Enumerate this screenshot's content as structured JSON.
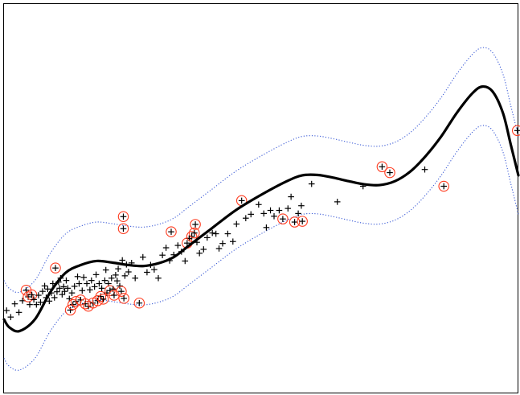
{
  "chart_data": {
    "type": "scatter",
    "title": "",
    "xlabel": "",
    "ylabel": "",
    "xlim": [
      0,
      1
    ],
    "ylim": [
      0,
      1
    ],
    "grid": false,
    "legend": "none",
    "colors": {
      "points": "#000000",
      "support_vectors": "#ff3b1f",
      "fit": "#000000",
      "band": "#3b5bd6",
      "frame": "#000000"
    },
    "fit_curve": {
      "x": [
        0.0,
        0.01,
        0.03,
        0.06,
        0.09,
        0.12,
        0.15,
        0.18,
        0.21,
        0.24,
        0.27,
        0.3,
        0.33,
        0.36,
        0.4,
        0.45,
        0.5,
        0.55,
        0.58,
        0.61,
        0.64,
        0.67,
        0.7,
        0.73,
        0.76,
        0.79,
        0.82,
        0.85,
        0.88,
        0.91,
        0.93,
        0.95,
        0.97,
        0.985,
        1.0
      ],
      "y": [
        0.19,
        0.17,
        0.16,
        0.19,
        0.26,
        0.31,
        0.33,
        0.34,
        0.336,
        0.33,
        0.327,
        0.334,
        0.35,
        0.38,
        0.42,
        0.47,
        0.51,
        0.545,
        0.56,
        0.561,
        0.554,
        0.545,
        0.537,
        0.535,
        0.545,
        0.57,
        0.61,
        0.66,
        0.72,
        0.77,
        0.788,
        0.775,
        0.72,
        0.64,
        0.56
      ]
    },
    "band_upper": {
      "x": [
        0.0,
        0.01,
        0.03,
        0.06,
        0.09,
        0.12,
        0.15,
        0.18,
        0.21,
        0.24,
        0.27,
        0.3,
        0.33,
        0.36,
        0.4,
        0.45,
        0.5,
        0.55,
        0.58,
        0.61,
        0.64,
        0.67,
        0.7,
        0.73,
        0.76,
        0.79,
        0.82,
        0.85,
        0.88,
        0.91,
        0.93,
        0.95,
        0.97,
        0.985,
        1.0
      ],
      "y": [
        0.29,
        0.27,
        0.26,
        0.29,
        0.36,
        0.41,
        0.43,
        0.44,
        0.436,
        0.43,
        0.427,
        0.434,
        0.45,
        0.48,
        0.52,
        0.57,
        0.61,
        0.645,
        0.66,
        0.661,
        0.654,
        0.645,
        0.637,
        0.635,
        0.645,
        0.67,
        0.71,
        0.76,
        0.82,
        0.87,
        0.888,
        0.875,
        0.82,
        0.74,
        0.66
      ]
    },
    "band_lower": {
      "x": [
        0.0,
        0.01,
        0.03,
        0.06,
        0.09,
        0.12,
        0.15,
        0.18,
        0.21,
        0.24,
        0.27,
        0.3,
        0.33,
        0.36,
        0.4,
        0.45,
        0.5,
        0.55,
        0.58,
        0.61,
        0.64,
        0.67,
        0.7,
        0.73,
        0.76,
        0.79,
        0.82,
        0.85,
        0.88,
        0.91,
        0.93,
        0.95,
        0.97,
        0.985,
        1.0
      ],
      "y": [
        0.09,
        0.07,
        0.06,
        0.09,
        0.16,
        0.21,
        0.23,
        0.24,
        0.236,
        0.23,
        0.227,
        0.234,
        0.25,
        0.28,
        0.32,
        0.37,
        0.41,
        0.445,
        0.46,
        0.461,
        0.454,
        0.445,
        0.437,
        0.435,
        0.445,
        0.47,
        0.51,
        0.56,
        0.62,
        0.67,
        0.688,
        0.675,
        0.62,
        0.54,
        0.46
      ]
    },
    "points": [
      {
        "x": 0.005,
        "y": 0.213,
        "sv": false
      },
      {
        "x": 0.013,
        "y": 0.196,
        "sv": false
      },
      {
        "x": 0.021,
        "y": 0.23,
        "sv": false
      },
      {
        "x": 0.029,
        "y": 0.208,
        "sv": false
      },
      {
        "x": 0.036,
        "y": 0.238,
        "sv": false
      },
      {
        "x": 0.043,
        "y": 0.265,
        "sv": true
      },
      {
        "x": 0.047,
        "y": 0.248,
        "sv": true
      },
      {
        "x": 0.05,
        "y": 0.228,
        "sv": false
      },
      {
        "x": 0.054,
        "y": 0.253,
        "sv": true
      },
      {
        "x": 0.058,
        "y": 0.241,
        "sv": false
      },
      {
        "x": 0.063,
        "y": 0.228,
        "sv": false
      },
      {
        "x": 0.067,
        "y": 0.252,
        "sv": false
      },
      {
        "x": 0.071,
        "y": 0.234,
        "sv": false
      },
      {
        "x": 0.075,
        "y": 0.262,
        "sv": false
      },
      {
        "x": 0.079,
        "y": 0.276,
        "sv": false
      },
      {
        "x": 0.082,
        "y": 0.246,
        "sv": false
      },
      {
        "x": 0.085,
        "y": 0.268,
        "sv": false
      },
      {
        "x": 0.088,
        "y": 0.237,
        "sv": false
      },
      {
        "x": 0.092,
        "y": 0.258,
        "sv": false
      },
      {
        "x": 0.095,
        "y": 0.282,
        "sv": false
      },
      {
        "x": 0.098,
        "y": 0.246,
        "sv": false
      },
      {
        "x": 0.1,
        "y": 0.322,
        "sv": true
      },
      {
        "x": 0.103,
        "y": 0.261,
        "sv": false
      },
      {
        "x": 0.106,
        "y": 0.286,
        "sv": false
      },
      {
        "x": 0.108,
        "y": 0.27,
        "sv": false
      },
      {
        "x": 0.11,
        "y": 0.296,
        "sv": false
      },
      {
        "x": 0.113,
        "y": 0.254,
        "sv": false
      },
      {
        "x": 0.116,
        "y": 0.274,
        "sv": false
      },
      {
        "x": 0.118,
        "y": 0.262,
        "sv": false
      },
      {
        "x": 0.121,
        "y": 0.29,
        "sv": false
      },
      {
        "x": 0.124,
        "y": 0.27,
        "sv": false
      },
      {
        "x": 0.127,
        "y": 0.243,
        "sv": false
      },
      {
        "x": 0.129,
        "y": 0.214,
        "sv": true
      },
      {
        "x": 0.132,
        "y": 0.258,
        "sv": false
      },
      {
        "x": 0.134,
        "y": 0.228,
        "sv": true
      },
      {
        "x": 0.137,
        "y": 0.275,
        "sv": false
      },
      {
        "x": 0.14,
        "y": 0.236,
        "sv": true
      },
      {
        "x": 0.143,
        "y": 0.3,
        "sv": false
      },
      {
        "x": 0.146,
        "y": 0.282,
        "sv": false
      },
      {
        "x": 0.149,
        "y": 0.24,
        "sv": true
      },
      {
        "x": 0.152,
        "y": 0.264,
        "sv": false
      },
      {
        "x": 0.155,
        "y": 0.298,
        "sv": false
      },
      {
        "x": 0.158,
        "y": 0.23,
        "sv": true
      },
      {
        "x": 0.161,
        "y": 0.282,
        "sv": false
      },
      {
        "x": 0.164,
        "y": 0.224,
        "sv": true
      },
      {
        "x": 0.167,
        "y": 0.266,
        "sv": false
      },
      {
        "x": 0.17,
        "y": 0.29,
        "sv": false
      },
      {
        "x": 0.173,
        "y": 0.232,
        "sv": true
      },
      {
        "x": 0.176,
        "y": 0.274,
        "sv": false
      },
      {
        "x": 0.179,
        "y": 0.305,
        "sv": false
      },
      {
        "x": 0.182,
        "y": 0.238,
        "sv": true
      },
      {
        "x": 0.185,
        "y": 0.282,
        "sv": false
      },
      {
        "x": 0.188,
        "y": 0.249,
        "sv": true
      },
      {
        "x": 0.19,
        "y": 0.27,
        "sv": false
      },
      {
        "x": 0.193,
        "y": 0.242,
        "sv": true
      },
      {
        "x": 0.196,
        "y": 0.29,
        "sv": false
      },
      {
        "x": 0.198,
        "y": 0.317,
        "sv": false
      },
      {
        "x": 0.2,
        "y": 0.258,
        "sv": false
      },
      {
        "x": 0.203,
        "y": 0.282,
        "sv": false
      },
      {
        "x": 0.206,
        "y": 0.264,
        "sv": true
      },
      {
        "x": 0.209,
        "y": 0.296,
        "sv": false
      },
      {
        "x": 0.212,
        "y": 0.268,
        "sv": false
      },
      {
        "x": 0.214,
        "y": 0.252,
        "sv": true
      },
      {
        "x": 0.217,
        "y": 0.304,
        "sv": false
      },
      {
        "x": 0.22,
        "y": 0.289,
        "sv": false
      },
      {
        "x": 0.222,
        "y": 0.32,
        "sv": false
      },
      {
        "x": 0.225,
        "y": 0.276,
        "sv": false
      },
      {
        "x": 0.228,
        "y": 0.262,
        "sv": true
      },
      {
        "x": 0.23,
        "y": 0.342,
        "sv": false
      },
      {
        "x": 0.232,
        "y": 0.454,
        "sv": true
      },
      {
        "x": 0.232,
        "y": 0.423,
        "sv": true
      },
      {
        "x": 0.233,
        "y": 0.244,
        "sv": true
      },
      {
        "x": 0.235,
        "y": 0.302,
        "sv": false
      },
      {
        "x": 0.238,
        "y": 0.331,
        "sv": false
      },
      {
        "x": 0.242,
        "y": 0.312,
        "sv": false
      },
      {
        "x": 0.248,
        "y": 0.335,
        "sv": false
      },
      {
        "x": 0.255,
        "y": 0.296,
        "sv": false
      },
      {
        "x": 0.263,
        "y": 0.232,
        "sv": true
      },
      {
        "x": 0.27,
        "y": 0.35,
        "sv": false
      },
      {
        "x": 0.278,
        "y": 0.311,
        "sv": false
      },
      {
        "x": 0.285,
        "y": 0.33,
        "sv": false
      },
      {
        "x": 0.292,
        "y": 0.318,
        "sv": false
      },
      {
        "x": 0.3,
        "y": 0.296,
        "sv": false
      },
      {
        "x": 0.308,
        "y": 0.355,
        "sv": false
      },
      {
        "x": 0.315,
        "y": 0.374,
        "sv": false
      },
      {
        "x": 0.322,
        "y": 0.341,
        "sv": false
      },
      {
        "x": 0.325,
        "y": 0.415,
        "sv": true
      },
      {
        "x": 0.33,
        "y": 0.356,
        "sv": false
      },
      {
        "x": 0.338,
        "y": 0.38,
        "sv": false
      },
      {
        "x": 0.345,
        "y": 0.364,
        "sv": false
      },
      {
        "x": 0.352,
        "y": 0.34,
        "sv": false
      },
      {
        "x": 0.356,
        "y": 0.386,
        "sv": true
      },
      {
        "x": 0.36,
        "y": 0.398,
        "sv": false
      },
      {
        "x": 0.365,
        "y": 0.403,
        "sv": true
      },
      {
        "x": 0.37,
        "y": 0.412,
        "sv": true
      },
      {
        "x": 0.372,
        "y": 0.434,
        "sv": true
      },
      {
        "x": 0.375,
        "y": 0.388,
        "sv": false
      },
      {
        "x": 0.38,
        "y": 0.36,
        "sv": false
      },
      {
        "x": 0.388,
        "y": 0.37,
        "sv": false
      },
      {
        "x": 0.395,
        "y": 0.4,
        "sv": false
      },
      {
        "x": 0.405,
        "y": 0.412,
        "sv": false
      },
      {
        "x": 0.412,
        "y": 0.41,
        "sv": false
      },
      {
        "x": 0.418,
        "y": 0.372,
        "sv": false
      },
      {
        "x": 0.425,
        "y": 0.385,
        "sv": false
      },
      {
        "x": 0.435,
        "y": 0.41,
        "sv": false
      },
      {
        "x": 0.445,
        "y": 0.39,
        "sv": false
      },
      {
        "x": 0.452,
        "y": 0.435,
        "sv": false
      },
      {
        "x": 0.462,
        "y": 0.495,
        "sv": true
      },
      {
        "x": 0.47,
        "y": 0.45,
        "sv": false
      },
      {
        "x": 0.48,
        "y": 0.46,
        "sv": false
      },
      {
        "x": 0.495,
        "y": 0.485,
        "sv": false
      },
      {
        "x": 0.505,
        "y": 0.462,
        "sv": false
      },
      {
        "x": 0.51,
        "y": 0.426,
        "sv": false
      },
      {
        "x": 0.518,
        "y": 0.47,
        "sv": false
      },
      {
        "x": 0.525,
        "y": 0.455,
        "sv": false
      },
      {
        "x": 0.535,
        "y": 0.47,
        "sv": false
      },
      {
        "x": 0.542,
        "y": 0.448,
        "sv": true
      },
      {
        "x": 0.552,
        "y": 0.475,
        "sv": false
      },
      {
        "x": 0.558,
        "y": 0.505,
        "sv": false
      },
      {
        "x": 0.565,
        "y": 0.44,
        "sv": true
      },
      {
        "x": 0.572,
        "y": 0.462,
        "sv": false
      },
      {
        "x": 0.578,
        "y": 0.482,
        "sv": false
      },
      {
        "x": 0.58,
        "y": 0.442,
        "sv": true
      },
      {
        "x": 0.598,
        "y": 0.538,
        "sv": false
      },
      {
        "x": 0.648,
        "y": 0.492,
        "sv": false
      },
      {
        "x": 0.698,
        "y": 0.532,
        "sv": false
      },
      {
        "x": 0.735,
        "y": 0.582,
        "sv": true
      },
      {
        "x": 0.75,
        "y": 0.567,
        "sv": true
      },
      {
        "x": 0.818,
        "y": 0.575,
        "sv": false
      },
      {
        "x": 0.855,
        "y": 0.532,
        "sv": true
      },
      {
        "x": 0.998,
        "y": 0.675,
        "sv": true
      }
    ]
  }
}
